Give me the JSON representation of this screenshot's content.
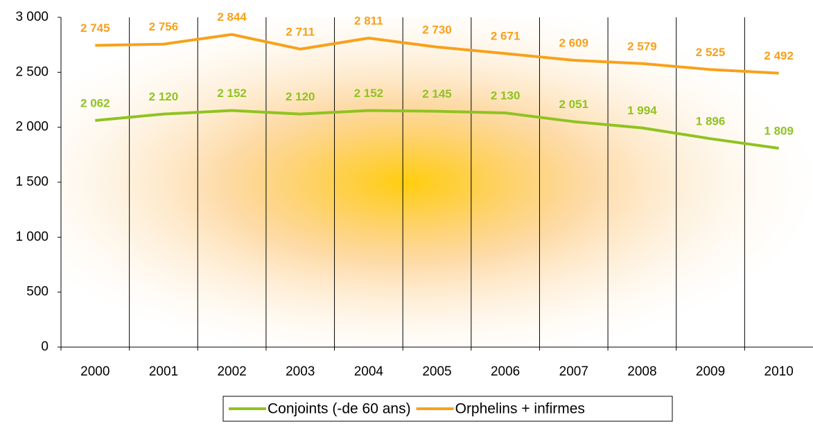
{
  "chart_data": {
    "type": "line",
    "categories": [
      "2000",
      "2001",
      "2002",
      "2003",
      "2004",
      "2005",
      "2006",
      "2007",
      "2008",
      "2009",
      "2010"
    ],
    "series": [
      {
        "name": "Conjoints (-de 60 ans)",
        "color": "#8fc31f",
        "values": [
          2062,
          2120,
          2152,
          2120,
          2152,
          2145,
          2130,
          2051,
          1994,
          1896,
          1809
        ],
        "value_labels": [
          "2 062",
          "2 120",
          "2 152",
          "2 120",
          "2 152",
          "2 145",
          "2 130",
          "2 051",
          "1 994",
          "1 896",
          "1 809"
        ]
      },
      {
        "name": "Orphelins + infirmes",
        "color": "#f7a11a",
        "values": [
          2745,
          2756,
          2844,
          2711,
          2811,
          2730,
          2671,
          2609,
          2579,
          2525,
          2492
        ],
        "value_labels": [
          "2 745",
          "2 756",
          "2 844",
          "2 711",
          "2 811",
          "2 730",
          "2 671",
          "2 609",
          "2 579",
          "2 525",
          "2 492"
        ]
      }
    ],
    "ylim": [
      0,
      3000
    ],
    "yticks": [
      0,
      500,
      {
        "value": 1000,
        "label": "1 000"
      },
      {
        "value": 1500,
        "label": "1 500"
      },
      {
        "value": 2000,
        "label": "2 000"
      },
      {
        "value": 2500,
        "label": "2 500"
      },
      {
        "value": 3000,
        "label": "3 000"
      }
    ],
    "legend": "bottom"
  }
}
